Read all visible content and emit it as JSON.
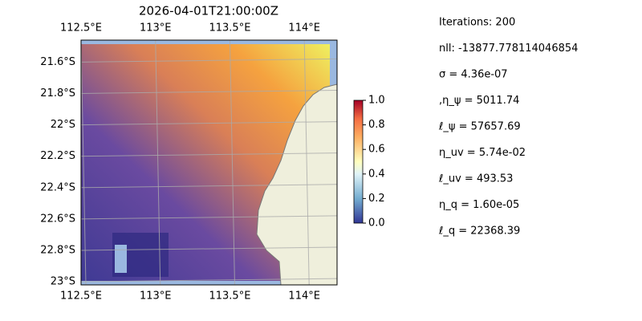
{
  "title": "2026-04-01T21:00:00Z",
  "map": {
    "lonlim": [
      112.5,
      114.22
    ],
    "latlim": [
      -21.46,
      -23.02
    ],
    "lonticks": [
      {
        "value": 112.5,
        "label": "112.5°E"
      },
      {
        "value": 113,
        "label": "113°E"
      },
      {
        "value": 113.5,
        "label": "113.5°E"
      },
      {
        "value": 114,
        "label": "114°E"
      }
    ],
    "latticks": [
      {
        "value": -21.6,
        "label": "21.6°S"
      },
      {
        "value": -21.8,
        "label": "21.8°S"
      },
      {
        "value": -22,
        "label": "22°S"
      },
      {
        "value": -22.2,
        "label": "22.2°S"
      },
      {
        "value": -22.4,
        "label": "22.4°S"
      },
      {
        "value": -22.6,
        "label": "22.6°S"
      },
      {
        "value": -22.8,
        "label": "22.8°S"
      },
      {
        "value": -23,
        "label": "23°S"
      }
    ]
  },
  "colorbar": {
    "lim": [
      0,
      1
    ],
    "ticks": [
      {
        "value": 0,
        "label": "0.0"
      },
      {
        "value": 0.2,
        "label": "0.2"
      },
      {
        "value": 0.4,
        "label": "0.4"
      },
      {
        "value": 0.6,
        "label": "0.6"
      },
      {
        "value": 0.8,
        "label": "0.8"
      },
      {
        "value": 1,
        "label": "1.0"
      }
    ]
  },
  "stats": [
    "Iterations: 200",
    "nll: -13877.778114046854",
    "σ = 4.36e-07",
    ",η_ψ = 5011.74",
    "ℓ_ψ = 57657.69",
    "η_uv = 5.74e-02",
    "ℓ_uv = 493.53",
    "η_q = 1.60e-05",
    "ℓ_q = 22368.39"
  ]
}
